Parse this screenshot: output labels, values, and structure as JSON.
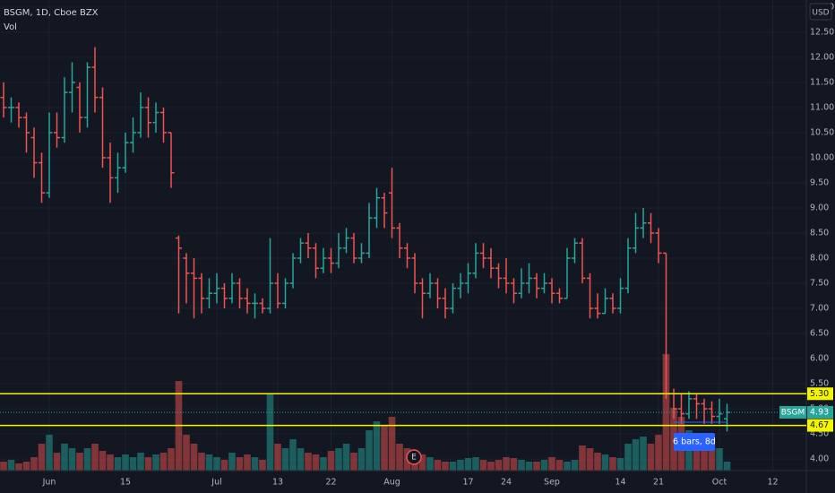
{
  "chart_data": {
    "type": "ohlc",
    "title": "BSGM, 1D, Cboe BZX",
    "volume_title": "Vol",
    "currency": "USD",
    "up_color": "#26a69a",
    "down_color": "#ef5350",
    "ylim": [
      3.77,
      13.14
    ],
    "yticks": [
      {
        "value": 4,
        "label": "4.00"
      },
      {
        "value": 4.5,
        "label": "4.50"
      },
      {
        "value": 5,
        "label": "5.00"
      },
      {
        "value": 5.5,
        "label": "5.50"
      },
      {
        "value": 6,
        "label": "6.00"
      },
      {
        "value": 6.5,
        "label": "6.50"
      },
      {
        "value": 7,
        "label": "7.00"
      },
      {
        "value": 7.5,
        "label": "7.50"
      },
      {
        "value": 8,
        "label": "8.00"
      },
      {
        "value": 8.5,
        "label": "8.50"
      },
      {
        "value": 9,
        "label": "9.00"
      },
      {
        "value": 9.5,
        "label": "9.50"
      },
      {
        "value": 10,
        "label": "10.00"
      },
      {
        "value": 10.5,
        "label": "10.50"
      },
      {
        "value": 11,
        "label": "11.00"
      },
      {
        "value": 11.5,
        "label": "11.50"
      },
      {
        "value": 12,
        "label": "12.00"
      },
      {
        "value": 12.5,
        "label": "12.50"
      },
      {
        "value": 13,
        "label": "13.00"
      }
    ],
    "categories": [
      null,
      null,
      null,
      null,
      null,
      null,
      "Jun",
      null,
      null,
      null,
      null,
      null,
      null,
      null,
      null,
      null,
      "15",
      null,
      null,
      null,
      null,
      null,
      null,
      null,
      null,
      null,
      null,
      null,
      "Jul",
      null,
      null,
      null,
      null,
      null,
      null,
      null,
      "13",
      null,
      null,
      null,
      null,
      null,
      null,
      "22",
      null,
      null,
      null,
      null,
      null,
      null,
      null,
      "Aug",
      null,
      null,
      null,
      null,
      null,
      null,
      null,
      null,
      null,
      "17",
      null,
      null,
      null,
      null,
      "24",
      null,
      null,
      null,
      null,
      null,
      "Sep",
      null,
      null,
      null,
      null,
      null,
      null,
      null,
      null,
      "14",
      null,
      null,
      null,
      null,
      "21",
      null,
      null,
      null,
      null,
      null,
      null,
      null,
      "Oct",
      null,
      null,
      null,
      null,
      null,
      null,
      "12"
    ],
    "ohlc": [
      [
        11.2,
        11.5,
        10.8,
        11.0
      ],
      [
        11.0,
        11.2,
        10.7,
        11.0
      ],
      [
        11.0,
        11.1,
        10.6,
        10.8
      ],
      [
        10.8,
        10.9,
        10.1,
        10.5
      ],
      [
        10.4,
        10.6,
        9.6,
        9.9
      ],
      [
        9.9,
        10.1,
        9.1,
        9.3
      ],
      [
        9.3,
        10.9,
        9.2,
        10.5
      ],
      [
        10.5,
        10.9,
        10.2,
        10.4
      ],
      [
        10.4,
        11.6,
        10.3,
        11.3
      ],
      [
        11.3,
        11.9,
        10.9,
        11.5
      ],
      [
        11.4,
        11.5,
        10.5,
        10.8
      ],
      [
        10.8,
        11.9,
        10.6,
        11.8
      ],
      [
        11.8,
        12.2,
        10.9,
        11.2
      ],
      [
        11.2,
        11.4,
        9.8,
        10.0
      ],
      [
        10.0,
        10.3,
        9.1,
        9.6
      ],
      [
        9.6,
        10.1,
        9.3,
        9.8
      ],
      [
        9.8,
        10.5,
        9.7,
        10.3
      ],
      [
        10.3,
        10.8,
        10.1,
        10.5
      ],
      [
        10.5,
        11.3,
        10.4,
        11.0
      ],
      [
        11.0,
        11.2,
        10.4,
        10.7
      ],
      [
        10.7,
        11.1,
        10.5,
        10.9
      ],
      [
        10.9,
        11.0,
        10.3,
        10.5
      ],
      [
        10.5,
        10.5,
        9.4,
        9.7
      ],
      [
        8.4,
        8.45,
        6.9,
        8.2
      ],
      [
        8.0,
        8.1,
        7.1,
        7.7
      ],
      [
        7.7,
        8.0,
        6.8,
        7.6
      ],
      [
        7.6,
        7.7,
        6.9,
        7.2
      ],
      [
        7.2,
        7.6,
        7.0,
        7.3
      ],
      [
        7.3,
        7.7,
        7.1,
        7.4
      ],
      [
        7.4,
        7.5,
        7.0,
        7.2
      ],
      [
        7.2,
        7.7,
        7.1,
        7.5
      ],
      [
        7.5,
        7.6,
        7.0,
        7.2
      ],
      [
        7.2,
        7.4,
        6.9,
        7.1
      ],
      [
        7.1,
        7.3,
        6.8,
        7.1
      ],
      [
        7.1,
        7.2,
        6.9,
        7.0
      ],
      [
        7.0,
        8.4,
        6.9,
        7.5
      ],
      [
        7.5,
        7.7,
        7.0,
        7.1
      ],
      [
        7.1,
        7.6,
        7.0,
        7.5
      ],
      [
        7.5,
        8.1,
        7.4,
        8.0
      ],
      [
        8.0,
        8.4,
        7.9,
        8.3
      ],
      [
        8.3,
        8.5,
        8.0,
        8.2
      ],
      [
        8.2,
        8.3,
        7.6,
        7.8
      ],
      [
        7.8,
        8.2,
        7.7,
        8.0
      ],
      [
        8.0,
        8.2,
        7.7,
        7.9
      ],
      [
        7.9,
        8.5,
        7.8,
        8.2
      ],
      [
        8.2,
        8.6,
        8.1,
        8.4
      ],
      [
        8.4,
        8.5,
        7.9,
        8.0
      ],
      [
        8.0,
        8.3,
        7.9,
        8.1
      ],
      [
        8.1,
        9.1,
        8.0,
        8.8
      ],
      [
        8.8,
        9.4,
        8.6,
        9.2
      ],
      [
        9.2,
        9.3,
        8.6,
        8.9
      ],
      [
        9.3,
        9.8,
        8.4,
        8.6
      ],
      [
        8.6,
        8.7,
        8.0,
        8.2
      ],
      [
        8.2,
        8.3,
        7.8,
        8.0
      ],
      [
        8.0,
        8.1,
        7.3,
        7.5
      ],
      [
        7.5,
        7.6,
        6.8,
        7.3
      ],
      [
        7.3,
        7.7,
        7.2,
        7.5
      ],
      [
        7.5,
        7.6,
        7.0,
        7.2
      ],
      [
        7.2,
        7.4,
        6.8,
        7.0
      ],
      [
        7.0,
        7.5,
        6.9,
        7.4
      ],
      [
        7.4,
        7.7,
        7.2,
        7.5
      ],
      [
        7.5,
        7.9,
        7.3,
        7.7
      ],
      [
        7.7,
        8.3,
        7.6,
        8.1
      ],
      [
        8.1,
        8.3,
        7.8,
        8.0
      ],
      [
        8.0,
        8.2,
        7.6,
        7.8
      ],
      [
        7.8,
        7.9,
        7.4,
        7.6
      ],
      [
        7.6,
        8.0,
        7.3,
        7.5
      ],
      [
        7.5,
        7.6,
        7.1,
        7.3
      ],
      [
        7.3,
        7.8,
        7.2,
        7.5
      ],
      [
        7.5,
        7.9,
        7.3,
        7.6
      ],
      [
        7.6,
        7.7,
        7.2,
        7.4
      ],
      [
        7.4,
        7.7,
        7.3,
        7.5
      ],
      [
        7.5,
        7.6,
        7.1,
        7.3
      ],
      [
        7.3,
        7.4,
        7.1,
        7.2
      ],
      [
        7.2,
        8.2,
        7.2,
        8.0
      ],
      [
        8.0,
        8.4,
        7.9,
        8.3
      ],
      [
        8.3,
        8.4,
        7.5,
        7.6
      ],
      [
        7.6,
        7.7,
        6.8,
        7.0
      ],
      [
        7.0,
        7.3,
        6.8,
        6.9
      ],
      [
        6.9,
        7.4,
        6.9,
        7.2
      ],
      [
        7.2,
        7.3,
        6.9,
        7.0
      ],
      [
        7.0,
        7.6,
        6.9,
        7.4
      ],
      [
        7.4,
        8.4,
        7.3,
        8.2
      ],
      [
        8.2,
        8.9,
        8.1,
        8.6
      ],
      [
        8.6,
        9.0,
        8.4,
        8.7
      ],
      [
        8.7,
        8.9,
        8.3,
        8.5
      ],
      [
        8.5,
        8.6,
        7.9,
        8.1
      ],
      [
        8.1,
        8.1,
        5.2,
        5.3
      ],
      [
        5.3,
        5.4,
        4.8,
        5.0
      ],
      [
        5.0,
        5.3,
        4.7,
        4.9
      ],
      [
        4.9,
        5.35,
        4.8,
        5.2
      ],
      [
        5.2,
        5.3,
        4.8,
        5.1
      ],
      [
        5.1,
        5.2,
        4.7,
        5.0
      ],
      [
        5.0,
        5.15,
        4.7,
        4.85
      ],
      [
        4.85,
        5.2,
        4.7,
        4.9
      ],
      [
        4.8,
        5.1,
        4.55,
        4.93
      ],
      null,
      null,
      null,
      null,
      null,
      null
    ],
    "volume": [
      10,
      12,
      8,
      10,
      15,
      30,
      40,
      20,
      30,
      25,
      20,
      25,
      30,
      22,
      18,
      15,
      18,
      15,
      20,
      15,
      18,
      20,
      25,
      100,
      40,
      30,
      20,
      18,
      15,
      12,
      20,
      15,
      18,
      15,
      12,
      85,
      30,
      25,
      35,
      25,
      20,
      18,
      15,
      22,
      25,
      30,
      20,
      25,
      45,
      55,
      50,
      60,
      30,
      25,
      20,
      18,
      15,
      12,
      10,
      10,
      12,
      14,
      15,
      12,
      10,
      12,
      15,
      14,
      12,
      10,
      10,
      12,
      15,
      12,
      10,
      12,
      28,
      25,
      20,
      18,
      15,
      14,
      30,
      35,
      38,
      30,
      40,
      130,
      70,
      60,
      45,
      40,
      35,
      30,
      25,
      10,
      null,
      null,
      null,
      null,
      null,
      null
    ],
    "volume_ylim": [
      0,
      140
    ],
    "hlines": [
      {
        "value": 5.3,
        "label": "5.30"
      },
      {
        "value": 4.67,
        "label": "4.67"
      }
    ],
    "hline_color": "#f5f500",
    "last_price": {
      "symbol": "BSGM",
      "value": 4.93
    },
    "annotation": "6 bars, 8d",
    "event_marker": "E"
  }
}
